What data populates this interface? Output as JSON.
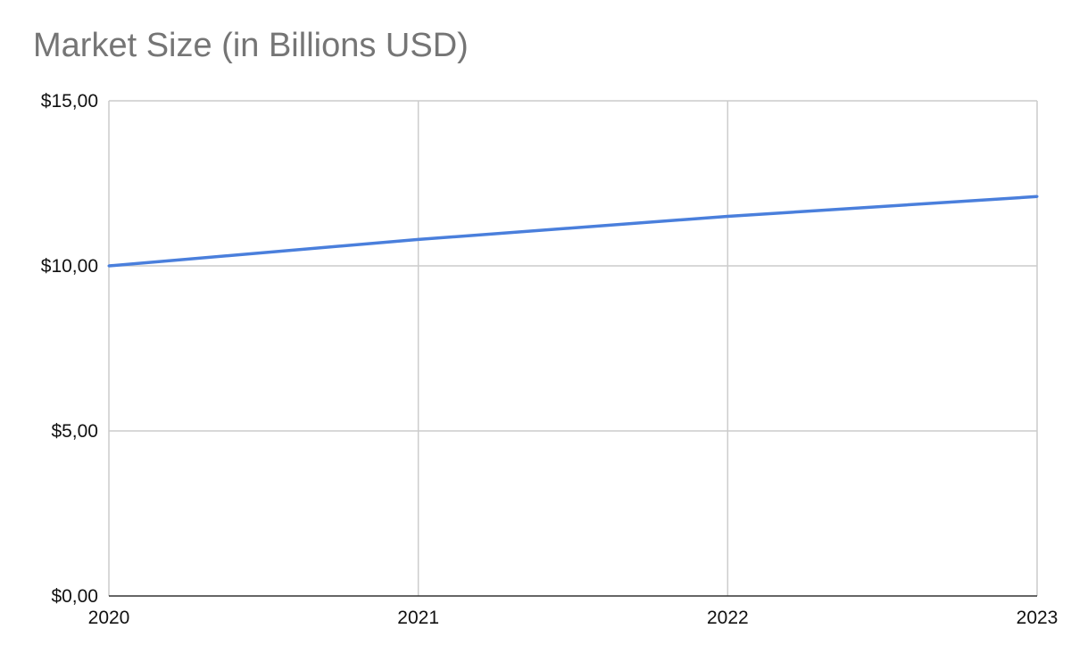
{
  "chart_data": {
    "type": "line",
    "title": "Market Size (in Billions USD)",
    "xlabel": "",
    "ylabel": "",
    "x": [
      "2020",
      "2021",
      "2022",
      "2023"
    ],
    "series": [
      {
        "values": [
          10.0,
          10.8,
          11.5,
          12.1
        ],
        "color": "#4a7fdc"
      }
    ],
    "ylim": [
      0,
      15
    ],
    "y_ticks": [
      0,
      5,
      10,
      15
    ],
    "y_tick_labels": [
      "$0,00",
      "$5,00",
      "$10,00",
      "$15,00"
    ],
    "grid": true,
    "legend": "none"
  }
}
